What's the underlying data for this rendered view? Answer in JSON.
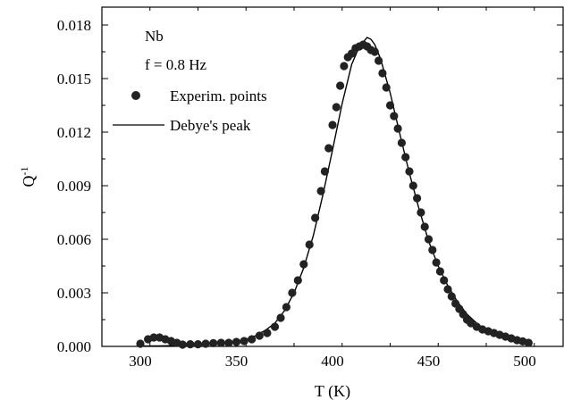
{
  "chart_data": {
    "type": "scatter",
    "xlabel": "T (K)",
    "ylabel": {
      "base": "Q",
      "sup": "-1"
    },
    "xlim": [
      280,
      520
    ],
    "ylim": [
      0,
      0.019
    ],
    "x_ticks": [
      300,
      350,
      400,
      450,
      500
    ],
    "y_ticks": [
      0.0,
      0.003,
      0.006,
      0.009,
      0.012,
      0.015,
      0.018
    ],
    "x_tick_labels": [
      "300",
      "350",
      "400",
      "450",
      "500"
    ],
    "y_tick_labels": [
      "0.000",
      "0.003",
      "0.006",
      "0.009",
      "0.012",
      "0.015",
      "0.018"
    ],
    "grid": false,
    "legend_placement": "top-left",
    "annotations": [
      "Nb",
      "f = 0.8 Hz"
    ],
    "series": [
      {
        "name": "Experim. points",
        "kind": "markers",
        "color": "#222222",
        "x": [
          300,
          304,
          307,
          310,
          313,
          316,
          319,
          322,
          326,
          330,
          334,
          338,
          342,
          346,
          350,
          354,
          358,
          362,
          366,
          370,
          373,
          376,
          379,
          382,
          385,
          388,
          391,
          394,
          396,
          398,
          400,
          402,
          404,
          406,
          408,
          410,
          412,
          414,
          416,
          418,
          420,
          422,
          424,
          426,
          428,
          430,
          432,
          434,
          436,
          438,
          440,
          442,
          444,
          446,
          448,
          450,
          452,
          454,
          456,
          458,
          460,
          462,
          464,
          466,
          468,
          470,
          472,
          475,
          478,
          481,
          484,
          487,
          490,
          493,
          496,
          499,
          502
        ],
        "y": [
          0.00015,
          0.0004,
          0.0005,
          0.0005,
          0.0004,
          0.0003,
          0.0002,
          0.0001,
          0.00012,
          0.00012,
          0.00015,
          0.00018,
          0.0002,
          0.0002,
          0.00025,
          0.0003,
          0.0004,
          0.0006,
          0.00075,
          0.0011,
          0.0016,
          0.0022,
          0.003,
          0.0037,
          0.0046,
          0.0057,
          0.0072,
          0.0087,
          0.0098,
          0.0111,
          0.0124,
          0.0134,
          0.0146,
          0.0157,
          0.0162,
          0.0164,
          0.0167,
          0.0168,
          0.0169,
          0.0168,
          0.0166,
          0.0165,
          0.016,
          0.0153,
          0.0145,
          0.0135,
          0.0129,
          0.0122,
          0.0114,
          0.0106,
          0.0098,
          0.009,
          0.0083,
          0.0075,
          0.0067,
          0.006,
          0.0054,
          0.0047,
          0.0042,
          0.0037,
          0.0032,
          0.0028,
          0.0024,
          0.0021,
          0.0018,
          0.0015,
          0.0013,
          0.0011,
          0.00095,
          0.00085,
          0.00075,
          0.00065,
          0.00055,
          0.00045,
          0.00035,
          0.00028,
          0.0002
        ]
      },
      {
        "name": "Debye's peak",
        "kind": "line",
        "color": "#000000",
        "x": [
          300,
          310,
          320,
          330,
          340,
          350,
          355,
          360,
          365,
          370,
          375,
          380,
          385,
          390,
          395,
          400,
          405,
          410,
          414,
          418,
          420,
          422,
          425,
          430,
          435,
          440,
          445,
          450,
          455,
          460,
          465,
          470,
          475,
          480,
          485,
          490,
          495,
          500
        ],
        "y": [
          2e-05,
          3e-05,
          5e-05,
          9e-05,
          0.00015,
          0.00028,
          0.0004,
          0.0006,
          0.0009,
          0.0013,
          0.002,
          0.003,
          0.0044,
          0.0062,
          0.0085,
          0.011,
          0.0136,
          0.0158,
          0.0168,
          0.0173,
          0.0172,
          0.0169,
          0.0161,
          0.0142,
          0.0119,
          0.0097,
          0.0077,
          0.0059,
          0.0045,
          0.0034,
          0.0025,
          0.0018,
          0.0013,
          0.0009,
          0.0007,
          0.0005,
          0.0004,
          0.0003
        ]
      }
    ]
  }
}
